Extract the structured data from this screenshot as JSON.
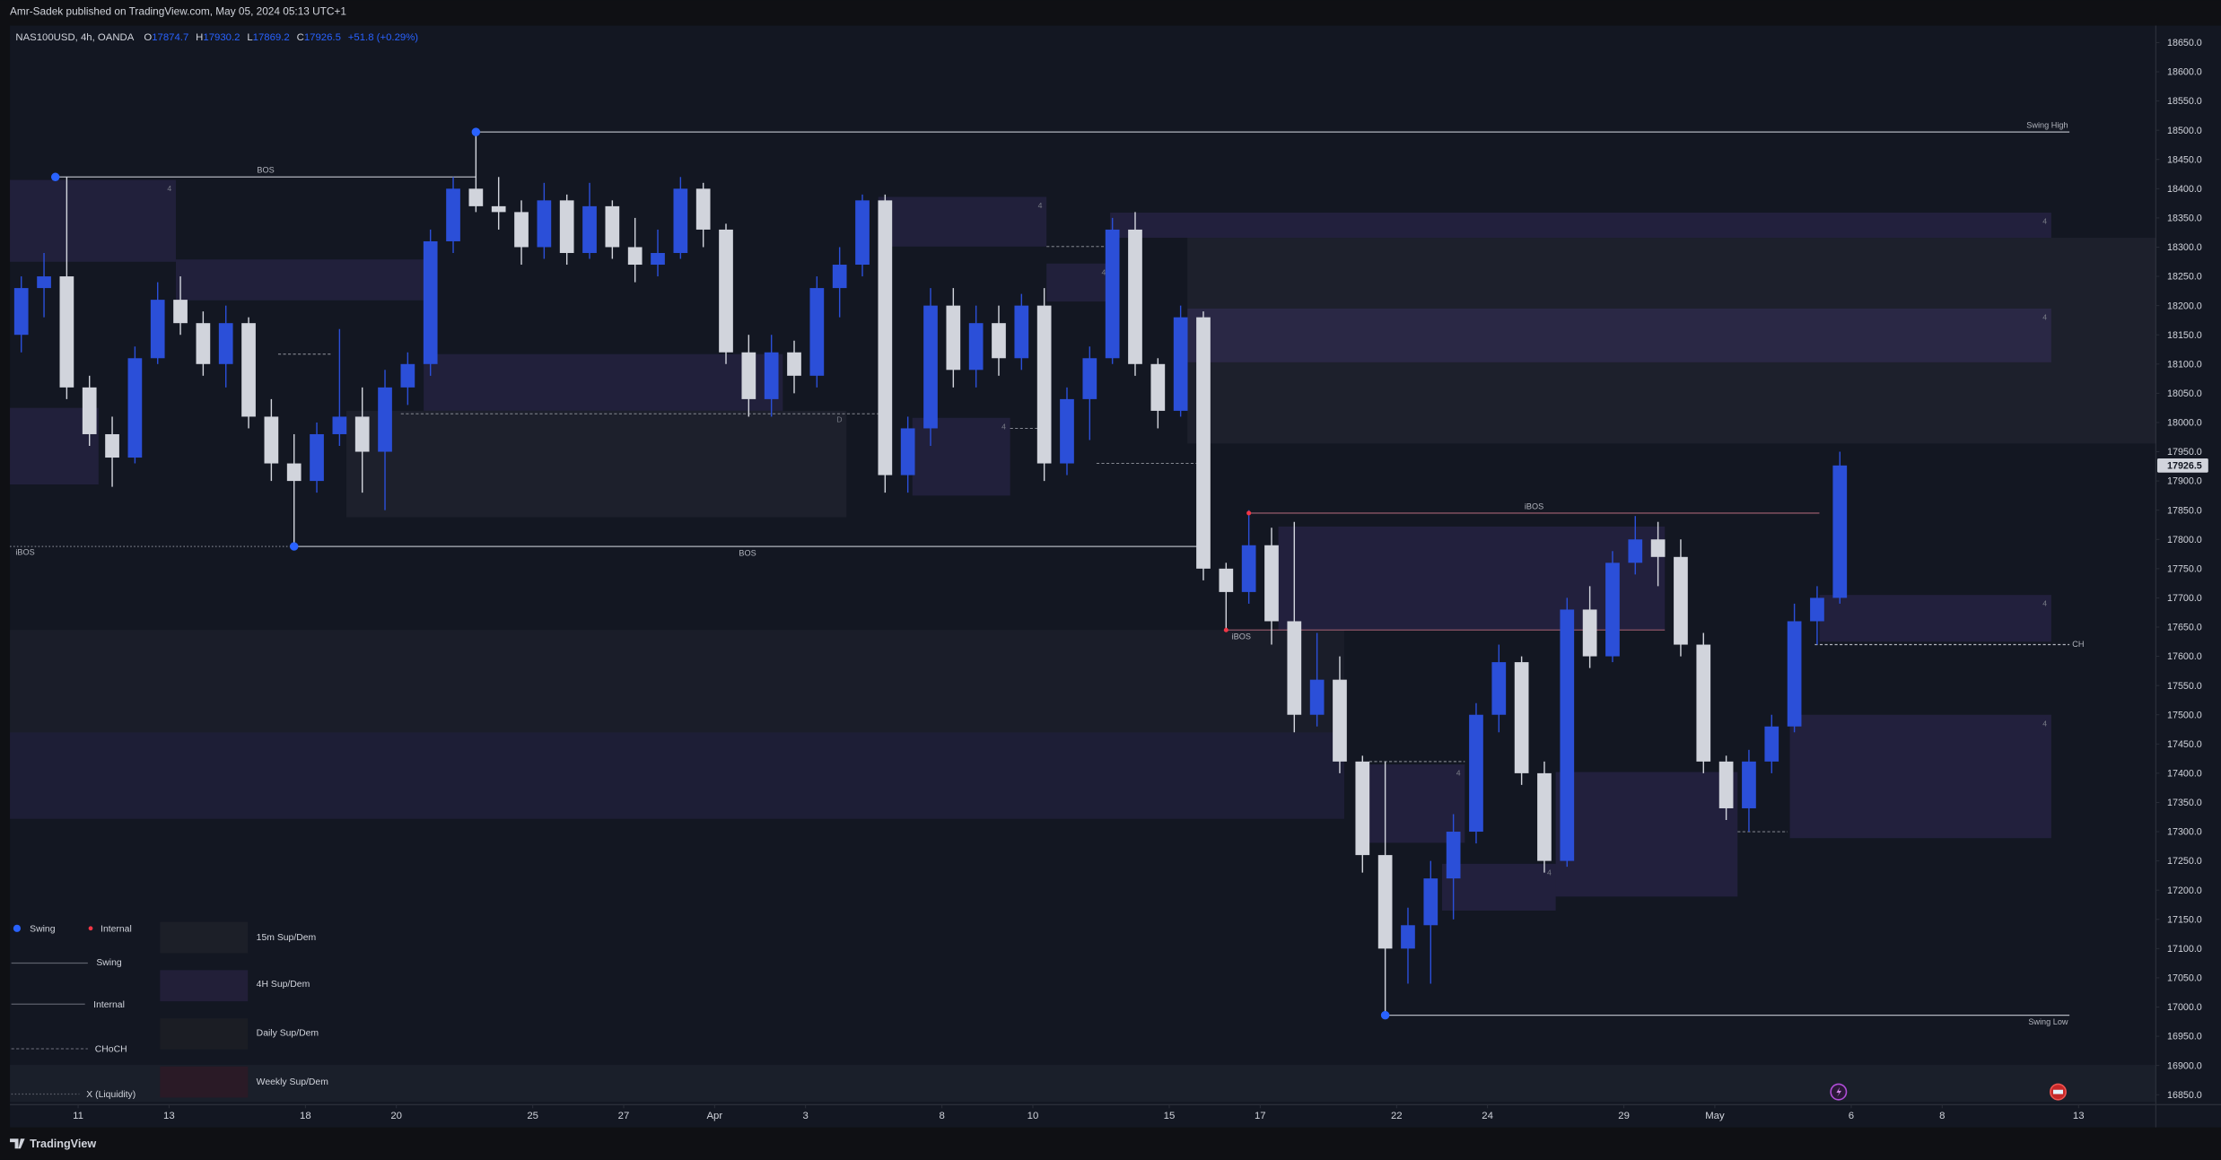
{
  "publisher_note": "Amr-Sadek published on TradingView.com, May 05, 2024 05:13 UTC+1",
  "footer": {
    "brand": "TradingView"
  },
  "indicator_legend": {
    "pivots": [
      "Swing",
      "Internal"
    ],
    "lines": [
      "Swing",
      "Internal",
      "CHoCH",
      "X (Liquidity)"
    ],
    "zones": [
      "15m Sup/Dem",
      "4H Sup/Dem",
      "Daily Sup/Dem",
      "Weekly Sup/Dem"
    ]
  },
  "chart_data": {
    "type": "candlestick",
    "symbol": "NAS100USD, 4h, OANDA",
    "ohlc_header": [
      {
        "key": "O",
        "value": 17874.7
      },
      {
        "key": "H",
        "value": 17930.2
      },
      {
        "key": "L",
        "value": 17869.2
      },
      {
        "key": "C",
        "value": 17926.5
      }
    ],
    "change": "+51.8 (+0.29%)",
    "up_color": "#2b4fd8",
    "down_color": "#d1d4dc",
    "pivot_colors": {
      "swing": "#2962ff",
      "internal": "#f23645"
    },
    "xlim": [
      -1.5,
      45.7
    ],
    "ylim": [
      16833,
      18679
    ],
    "xticks": [
      {
        "value": 0,
        "label": "11"
      },
      {
        "value": 2,
        "label": "13"
      },
      {
        "value": 5,
        "label": "18"
      },
      {
        "value": 7,
        "label": "20"
      },
      {
        "value": 10,
        "label": "25"
      },
      {
        "value": 12,
        "label": "27"
      },
      {
        "value": 14,
        "label": "Apr"
      },
      {
        "value": 16,
        "label": "3"
      },
      {
        "value": 19,
        "label": "8"
      },
      {
        "value": 21,
        "label": "10"
      },
      {
        "value": 24,
        "label": "15"
      },
      {
        "value": 26,
        "label": "17"
      },
      {
        "value": 29,
        "label": "22"
      },
      {
        "value": 31,
        "label": "24"
      },
      {
        "value": 34,
        "label": "29"
      },
      {
        "value": 36,
        "label": "May"
      },
      {
        "value": 39,
        "label": "6"
      },
      {
        "value": 41,
        "label": "8"
      },
      {
        "value": 44,
        "label": "13"
      }
    ],
    "yticks": [
      {
        "value": 16850,
        "label": "16850.0"
      },
      {
        "value": 16900,
        "label": "16900.0"
      },
      {
        "value": 16950,
        "label": "16950.0"
      },
      {
        "value": 17000,
        "label": "17000.0"
      },
      {
        "value": 17050,
        "label": "17050.0"
      },
      {
        "value": 17100,
        "label": "17100.0"
      },
      {
        "value": 17150,
        "label": "17150.0"
      },
      {
        "value": 17200,
        "label": "17200.0"
      },
      {
        "value": 17250,
        "label": "17250.0"
      },
      {
        "value": 17300,
        "label": "17300.0"
      },
      {
        "value": 17350,
        "label": "17350.0"
      },
      {
        "value": 17400,
        "label": "17400.0"
      },
      {
        "value": 17450,
        "label": "17450.0"
      },
      {
        "value": 17500,
        "label": "17500.0"
      },
      {
        "value": 17550,
        "label": "17550.0"
      },
      {
        "value": 17600,
        "label": "17600.0"
      },
      {
        "value": 17650,
        "label": "17650.0"
      },
      {
        "value": 17700,
        "label": "17700.0"
      },
      {
        "value": 17750,
        "label": "17750.0"
      },
      {
        "value": 17800,
        "label": "17800.0"
      },
      {
        "value": 17850,
        "label": "17850.0"
      },
      {
        "value": 17900,
        "label": "17900.0"
      },
      {
        "value": 17950,
        "label": "17950.0"
      },
      {
        "value": 18000,
        "label": "18000.0"
      },
      {
        "value": 18050,
        "label": "18050.0"
      },
      {
        "value": 18100,
        "label": "18100.0"
      },
      {
        "value": 18150,
        "label": "18150.0"
      },
      {
        "value": 18200,
        "label": "18200.0"
      },
      {
        "value": 18250,
        "label": "18250.0"
      },
      {
        "value": 18300,
        "label": "18300.0"
      },
      {
        "value": 18350,
        "label": "18350.0"
      },
      {
        "value": 18400,
        "label": "18400.0"
      },
      {
        "value": 18450,
        "label": "18450.0"
      },
      {
        "value": 18500,
        "label": "18500.0"
      },
      {
        "value": 18550,
        "label": "18550.0"
      },
      {
        "value": 18600,
        "label": "18600.0"
      },
      {
        "value": 18650,
        "label": "18650.0"
      }
    ],
    "grid": false,
    "candles": {
      "x": [
        -1.25,
        -0.75,
        -0.25,
        0.25,
        0.75,
        1.25,
        1.75,
        2.25,
        2.75,
        3.25,
        3.75,
        4.25,
        4.75,
        5.25,
        5.75,
        6.25,
        6.75,
        7.25,
        7.75,
        8.25,
        8.75,
        9.25,
        9.75,
        10.25,
        10.75,
        11.25,
        11.75,
        12.25,
        12.75,
        13.25,
        13.75,
        14.25,
        14.75,
        15.25,
        15.75,
        16.25,
        16.75,
        17.25,
        17.75,
        18.25,
        18.75,
        19.25,
        19.75,
        20.25,
        20.75,
        21.25,
        21.75,
        22.25,
        22.75,
        23.25,
        23.75,
        24.25,
        24.75,
        25.25,
        25.75,
        26.25,
        26.75,
        27.25,
        27.75,
        28.25,
        28.75,
        29.25,
        29.75,
        30.25,
        30.75,
        31.25,
        31.75,
        32.25,
        32.75,
        33.25,
        33.75,
        34.25,
        34.75,
        35.25,
        35.75,
        36.25,
        36.75,
        37.25,
        37.75,
        38.25,
        38.75
      ],
      "open": [
        18150,
        18230,
        18250,
        18060,
        17980,
        17940,
        18110,
        18210,
        18170,
        18100,
        18170,
        18010,
        17930,
        17900,
        17980,
        18010,
        17950,
        18060,
        18100,
        18310,
        18400,
        18370,
        18360,
        18300,
        18380,
        18290,
        18370,
        18300,
        18270,
        18290,
        18400,
        18330,
        18120,
        18040,
        18120,
        18080,
        18230,
        18270,
        18380,
        17910,
        17990,
        18200,
        18090,
        18170,
        18110,
        18200,
        17930,
        18040,
        18110,
        18330,
        18100,
        18020,
        18180,
        17750,
        17710,
        17790,
        17660,
        17500,
        17560,
        17420,
        17260,
        17100,
        17140,
        17220,
        17300,
        17500,
        17590,
        17400,
        17250,
        17680,
        17600,
        17760,
        17800,
        17770,
        17620,
        17420,
        17340,
        17420,
        17480,
        17660,
        17700
      ],
      "high": [
        18250,
        18290,
        18420,
        18080,
        18010,
        18130,
        18240,
        18250,
        18190,
        18200,
        18180,
        18040,
        17980,
        18000,
        18160,
        18060,
        18090,
        18120,
        18330,
        18420,
        18497,
        18420,
        18380,
        18410,
        18390,
        18410,
        18380,
        18350,
        18330,
        18420,
        18410,
        18340,
        18150,
        18150,
        18140,
        18250,
        18300,
        18390,
        18390,
        18010,
        18230,
        18230,
        18200,
        18200,
        18220,
        18230,
        18060,
        18130,
        18350,
        18360,
        18110,
        18200,
        18190,
        17760,
        17850,
        17820,
        17830,
        17640,
        17600,
        17430,
        17420,
        17170,
        17250,
        17330,
        17520,
        17620,
        17600,
        17420,
        17700,
        17720,
        17780,
        17840,
        17830,
        17800,
        17640,
        17430,
        17440,
        17500,
        17690,
        17720,
        17950
      ],
      "low": [
        18120,
        18180,
        18040,
        17960,
        17890,
        17930,
        18100,
        18150,
        18080,
        18060,
        17990,
        17900,
        17788,
        17880,
        17960,
        17880,
        17850,
        18030,
        18080,
        18290,
        18360,
        18330,
        18270,
        18280,
        18270,
        18280,
        18280,
        18240,
        18250,
        18280,
        18300,
        18100,
        18010,
        18010,
        18050,
        18060,
        18180,
        18250,
        17880,
        17880,
        17960,
        18060,
        18060,
        18080,
        18090,
        17900,
        17910,
        17970,
        18100,
        18080,
        17990,
        18010,
        17730,
        17645,
        17690,
        17620,
        17470,
        17480,
        17400,
        17230,
        16986,
        17040,
        17040,
        17150,
        17280,
        17470,
        17380,
        17230,
        17240,
        17580,
        17590,
        17740,
        17720,
        17600,
        17400,
        17320,
        17300,
        17400,
        17470,
        17620,
        17690
      ],
      "close": [
        18230,
        18250,
        18060,
        17980,
        17940,
        18110,
        18210,
        18170,
        18100,
        18170,
        18010,
        17930,
        17900,
        17980,
        18010,
        17950,
        18060,
        18100,
        18310,
        18400,
        18370,
        18360,
        18300,
        18380,
        18290,
        18370,
        18300,
        18270,
        18290,
        18400,
        18330,
        18120,
        18040,
        18120,
        18080,
        18230,
        18270,
        18380,
        17910,
        17990,
        18200,
        18090,
        18170,
        18110,
        18200,
        17930,
        18040,
        18110,
        18330,
        18100,
        18020,
        18180,
        17750,
        17710,
        17790,
        17660,
        17500,
        17560,
        17420,
        17260,
        17100,
        17140,
        17220,
        17300,
        17500,
        17590,
        17400,
        17250,
        17680,
        17600,
        17760,
        17800,
        17770,
        17620,
        17420,
        17340,
        17420,
        17480,
        17660,
        17700,
        17926.5
      ]
    },
    "zones": [
      {
        "x": [
          -1.5,
          2.15
        ],
        "y": [
          18275,
          18415
        ],
        "color": "rgba(90,70,160,0.20)",
        "label": "4"
      },
      {
        "x": [
          2.15,
          7.6
        ],
        "y": [
          18209,
          18279
        ],
        "color": "rgba(90,70,160,0.20)"
      },
      {
        "x": [
          -1.5,
          0.45
        ],
        "y": [
          17894,
          18025
        ],
        "color": "rgba(90,70,160,0.20)"
      },
      {
        "x": [
          5.9,
          16.9
        ],
        "y": [
          17838,
          18020
        ],
        "color": "rgba(70,72,84,0.20)",
        "label": "D"
      },
      {
        "x": [
          7.6,
          15.5
        ],
        "y": [
          18020,
          18117
        ],
        "color": "rgba(90,70,160,0.20)",
        "label": "4"
      },
      {
        "x": [
          17.6,
          21.3
        ],
        "y": [
          18301,
          18386
        ],
        "color": "rgba(90,70,160,0.20)",
        "label": "4"
      },
      {
        "x": [
          18.35,
          20.5
        ],
        "y": [
          17875,
          18008
        ],
        "color": "rgba(90,70,160,0.20)",
        "label": "4"
      },
      {
        "x": [
          21.3,
          22.7
        ],
        "y": [
          18207,
          18272
        ],
        "color": "rgba(90,70,160,0.20)",
        "label": "4"
      },
      {
        "x": [
          24.4,
          45.7
        ],
        "y": [
          17964,
          18316
        ],
        "color": "rgba(70,72,84,0.20)"
      },
      {
        "x": [
          22.7,
          43.4
        ],
        "y": [
          18316,
          18359
        ],
        "color": "rgba(90,70,160,0.22)",
        "label": "4"
      },
      {
        "x": [
          24.4,
          43.4
        ],
        "y": [
          18103,
          18195
        ],
        "color": "rgba(90,70,160,0.22)",
        "label": "4"
      },
      {
        "x": [
          -1.5,
          27.85
        ],
        "y": [
          17322,
          17470
        ],
        "color": "rgba(90,70,160,0.16)"
      },
      {
        "x": [
          -1.5,
          27.85
        ],
        "y": [
          17470,
          17645
        ],
        "color": "rgba(70,72,84,0.14)"
      },
      {
        "x": [
          26.4,
          34.9
        ],
        "y": [
          17645,
          17822
        ],
        "color": "rgba(90,70,160,0.22)"
      },
      {
        "x": [
          28.3,
          30.5
        ],
        "y": [
          17281,
          17415
        ],
        "color": "rgba(90,70,160,0.22)",
        "label": "4"
      },
      {
        "x": [
          30,
          32.5
        ],
        "y": [
          17165,
          17245
        ],
        "color": "rgba(90,70,160,0.22)",
        "label": "4"
      },
      {
        "x": [
          32.5,
          36.5
        ],
        "y": [
          17189,
          17402
        ],
        "color": "rgba(90,70,160,0.22)",
        "label": "4"
      },
      {
        "x": [
          37.65,
          43.4
        ],
        "y": [
          17289,
          17500
        ],
        "color": "rgba(90,70,160,0.22)",
        "label": "4"
      },
      {
        "x": [
          38.3,
          43.4
        ],
        "y": [
          17625,
          17705
        ],
        "color": "rgba(90,70,160,0.22)",
        "label": "4"
      },
      {
        "x": [
          -1.5,
          45.7
        ],
        "y": [
          16838,
          16901
        ],
        "color": "rgba(70,72,84,0.16)"
      }
    ],
    "liquidity": [
      {
        "x": [
          7.1,
          17.6
        ],
        "y": 18015
      },
      {
        "x": [
          20.5,
          21.3
        ],
        "y": 17990
      },
      {
        "x": [
          21.3,
          22.7
        ],
        "y": 18301
      },
      {
        "x": [
          22.4,
          24.7
        ],
        "y": 17930
      },
      {
        "x": [
          28.4,
          30.5
        ],
        "y": 17420
      },
      {
        "x": [
          36.5,
          37.6
        ],
        "y": 17300
      },
      {
        "x": [
          4.4,
          5.6
        ],
        "y": 18117
      }
    ],
    "structure": [
      {
        "label": "BOS",
        "y": 18420,
        "x": [
          -0.5,
          8.75
        ],
        "color": "#b2b5be",
        "style": "solid"
      },
      {
        "label": "Swing High",
        "y": 18497,
        "x": [
          8.75,
          43.8
        ],
        "color": "#b2b5be",
        "style": "solid"
      },
      {
        "label": "iBOS",
        "y": 17788,
        "x": [
          -1.5,
          4.75
        ],
        "color": "#787b86",
        "style": "dotted"
      },
      {
        "label": "BOS",
        "y": 17788,
        "x": [
          4.75,
          24.7
        ],
        "color": "#b2b5be",
        "style": "solid"
      },
      {
        "label": "iBOS",
        "y": 17845,
        "x": [
          25.75,
          38.3
        ],
        "color": "#8c5566",
        "style": "solid"
      },
      {
        "label": "iBOS",
        "y": 17645,
        "x": [
          25.25,
          34.9
        ],
        "color": "#8c5566",
        "style": "solid"
      },
      {
        "label": "CH",
        "y": 17620,
        "x": [
          38.2,
          43.8
        ],
        "color": "#b2b5be",
        "style": "dashed"
      },
      {
        "label": "Swing Low",
        "y": 16986,
        "x": [
          28.75,
          43.8
        ],
        "color": "#b2b5be",
        "style": "solid"
      }
    ],
    "pivots": [
      {
        "x": -0.5,
        "y": 18420,
        "kind": "swing"
      },
      {
        "x": 8.75,
        "y": 18497,
        "kind": "swing"
      },
      {
        "x": 4.75,
        "y": 17788,
        "kind": "swing"
      },
      {
        "x": 28.75,
        "y": 16986,
        "kind": "swing"
      },
      {
        "x": 25.75,
        "y": 17845,
        "kind": "internal"
      },
      {
        "x": 25.25,
        "y": 17645,
        "kind": "internal"
      }
    ]
  }
}
